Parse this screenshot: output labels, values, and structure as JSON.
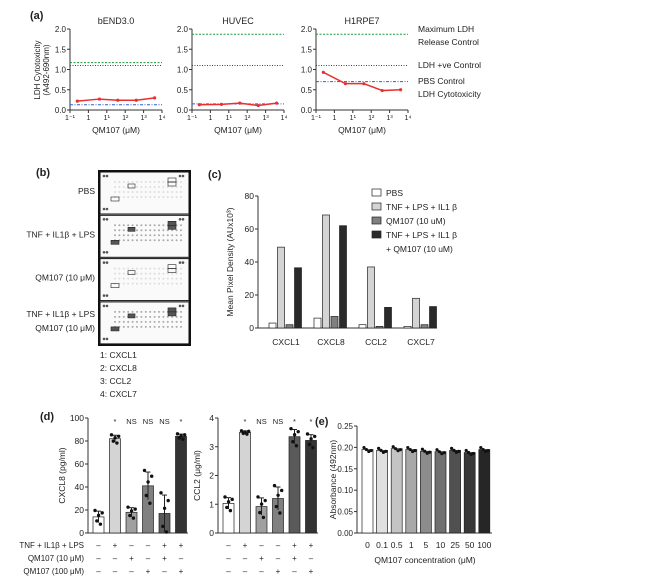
{
  "panel_labels": {
    "a": "(a)",
    "b": "(b)",
    "c": "(c)",
    "d": "(d)",
    "e": "(e)"
  },
  "colors": {
    "red": "#e8312f",
    "green": "#1a9a3a",
    "blue": "#2b5fd0",
    "black": "#444444"
  },
  "chart_data": [
    {
      "id": "a",
      "type": "line",
      "ylabel": "LDH Cytotoxicity",
      "ylabel2": "(A492-690nm)",
      "xlabel": "QM107 (μM)",
      "ylim": [
        0,
        2
      ],
      "yticks": [
        "0.0",
        "0.5",
        "1.0",
        "1.5",
        "2.0"
      ],
      "xticks": [
        "1⁻¹",
        "1",
        "1¹",
        "1²",
        "1³",
        "1⁴"
      ],
      "x_log": [
        -0.6,
        0.6,
        1.6,
        2.6,
        3.6
      ],
      "legend": [
        "Maximum LDH",
        "Release Control",
        "LDH +ve Control",
        "PBS Control",
        "LDH Cytotoxicity"
      ],
      "panels": [
        {
          "title": "bEND3.0",
          "values": [
            0.22,
            0.27,
            0.24,
            0.24,
            0.3
          ],
          "max_ldh": 1.17,
          "pos_ctrl": 1.1,
          "pbs": 0.13
        },
        {
          "title": "HUVEC",
          "values": [
            0.13,
            0.14,
            0.17,
            0.11,
            0.17
          ],
          "max_ldh": 1.87,
          "pos_ctrl": 1.1,
          "pbs": 0.15
        },
        {
          "title": "H1RPE7",
          "values": [
            0.93,
            0.65,
            0.65,
            0.48,
            0.5
          ],
          "max_ldh": 1.87,
          "pos_ctrl": 1.1,
          "pbs": 0.7
        }
      ]
    },
    {
      "id": "b",
      "type": "blot",
      "rows": [
        "PBS",
        "TNF + IL1β + LPS",
        "QM107 (10 μM)",
        "TNF + IL1β + LPS\nQM107 (10 μM)"
      ],
      "key": [
        "1: CXCL1",
        "2: CXCL8",
        "3: CCL2",
        "4: CXCL7"
      ]
    },
    {
      "id": "c",
      "type": "bar",
      "ylabel": "Mean Pixel Density (AUx10³)",
      "ylim": [
        0,
        80
      ],
      "yticks": [
        "0",
        "20",
        "40",
        "60",
        "80"
      ],
      "categories": [
        "CXCL1",
        "CXCL8",
        "CCL2",
        "CXCL7"
      ],
      "series": [
        {
          "name": "PBS",
          "color": "#ffffff",
          "values": [
            3,
            6,
            2,
            1
          ]
        },
        {
          "name": "TNF + LPS + IL1 β",
          "color": "#d4d4d4",
          "values": [
            49,
            68.5,
            37,
            18
          ]
        },
        {
          "name": "QM107 (10 uM)",
          "color": "#808080",
          "values": [
            2,
            7,
            1,
            2
          ]
        },
        {
          "name": "TNF + LPS + IL1 β",
          "name2": "+ QM107 (10 uM)",
          "color": "#2a2a2a",
          "values": [
            36.5,
            62,
            12.5,
            13
          ]
        }
      ]
    },
    {
      "id": "d1",
      "type": "bar",
      "ylabel": "CXCL8 (pg/ml)",
      "ylim": [
        0,
        100
      ],
      "yticks": [
        "0",
        "20",
        "40",
        "60",
        "80",
        "100"
      ],
      "values": [
        14,
        82,
        18,
        41,
        17,
        84
      ],
      "errors": [
        5,
        3,
        4,
        12,
        16,
        2
      ],
      "annotations": [
        "",
        "*",
        "NS",
        "NS",
        "NS",
        "*"
      ],
      "colors": [
        "#ffffff",
        "#d4d4d4",
        "#a0a0a0",
        "#808080",
        "#5a5a5a",
        "#333333"
      ]
    },
    {
      "id": "d2",
      "type": "bar",
      "ylabel": "CCL2 (μg/ml)",
      "ylim": [
        0,
        4
      ],
      "yticks": [
        "0",
        "1",
        "2",
        "3",
        "4"
      ],
      "values": [
        1.03,
        3.5,
        0.92,
        1.2,
        3.35,
        3.22
      ],
      "errors": [
        0.2,
        0.05,
        0.3,
        0.4,
        0.25,
        0.2
      ],
      "annotations": [
        "",
        "*",
        "NS",
        "NS",
        "*",
        "*"
      ],
      "colors": [
        "#ffffff",
        "#d4d4d4",
        "#a0a0a0",
        "#808080",
        "#5a5a5a",
        "#333333"
      ]
    },
    {
      "id": "d_conditions",
      "type": "table",
      "rows": [
        {
          "label": "TNF + IL1β + LPS",
          "signs": [
            "–",
            "+",
            "–",
            "–",
            "+",
            "+"
          ]
        },
        {
          "label": "QM107 (10 μM)",
          "signs": [
            "–",
            "–",
            "+",
            "–",
            "+",
            "–"
          ]
        },
        {
          "label": "QM107 (100 μM)",
          "signs": [
            "–",
            "–",
            "–",
            "+",
            "–",
            "+"
          ]
        }
      ]
    },
    {
      "id": "e",
      "type": "bar",
      "ylabel": "Absorbance (492nm)",
      "xlabel": "QM107 concentration (μM)",
      "ylim": [
        0,
        0.25
      ],
      "yticks": [
        "0.00",
        "0.05",
        "0.10",
        "0.15",
        "0.20",
        "0.25"
      ],
      "categories": [
        "0",
        "0.1",
        "0.5",
        "1",
        "5",
        "10",
        "25",
        "50",
        "100"
      ],
      "values": [
        0.195,
        0.193,
        0.197,
        0.195,
        0.191,
        0.19,
        0.193,
        0.188,
        0.195
      ],
      "colors": [
        "#ffffff",
        "#e0e0e0",
        "#c4c4c4",
        "#a8a8a8",
        "#8c8c8c",
        "#707070",
        "#505050",
        "#383838",
        "#262626"
      ]
    }
  ]
}
